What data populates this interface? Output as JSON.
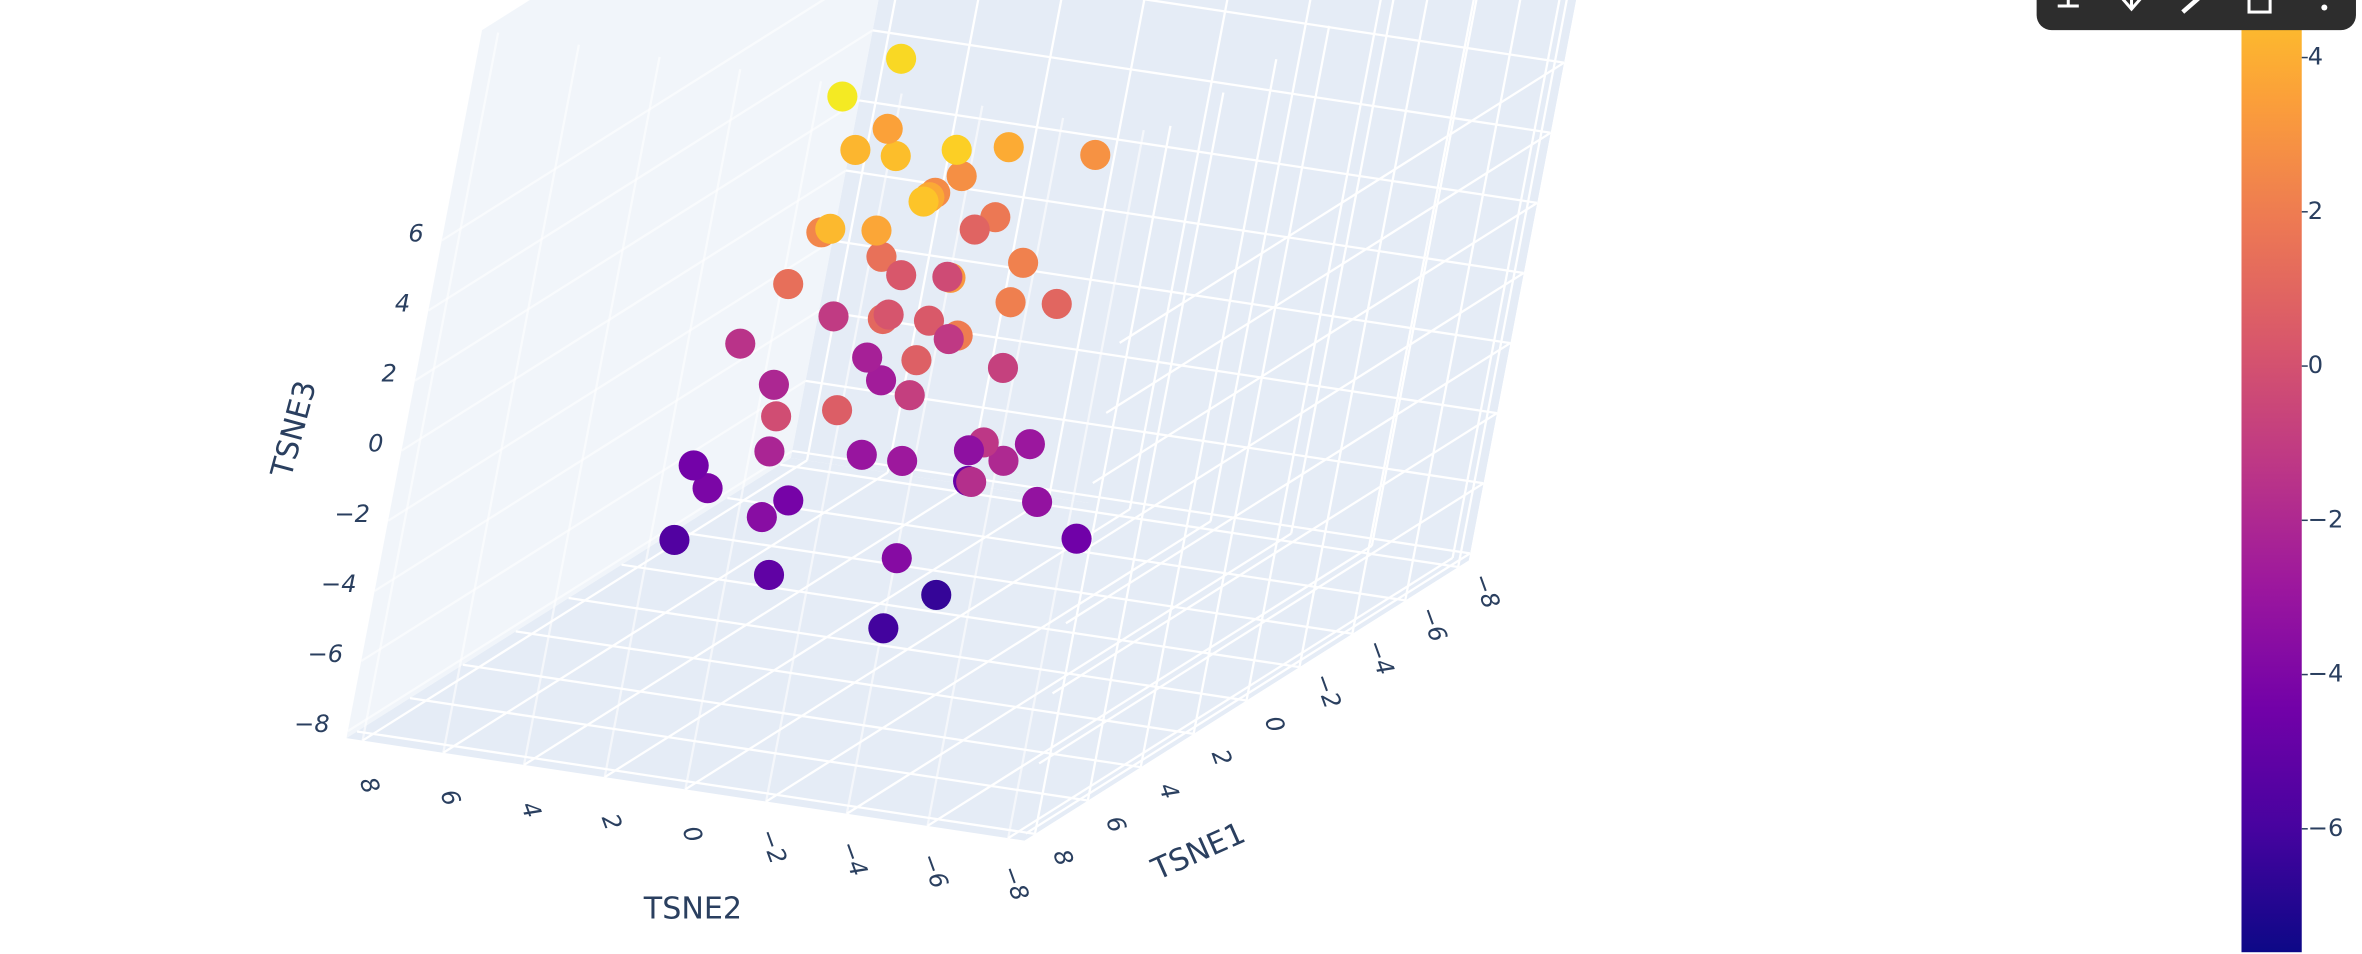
{
  "chart_data": {
    "type": "scatter3d",
    "xaxis_title": "TSNE1",
    "yaxis_title": "TSNE2",
    "zaxis_title": "TSNE3",
    "xlim": [
      -8.4,
      8.4
    ],
    "ylim": [
      -8.4,
      8.4
    ],
    "zlim": [
      -8.2,
      12
    ],
    "xticks": [
      {
        "value": -8,
        "label": "−8"
      },
      {
        "value": -6,
        "label": "−6"
      },
      {
        "value": -4,
        "label": "−4"
      },
      {
        "value": -2,
        "label": "−2"
      },
      0,
      2,
      4,
      6,
      8
    ],
    "yticks": [
      {
        "value": -8,
        "label": "−8"
      },
      {
        "value": -6,
        "label": "−6"
      },
      {
        "value": -4,
        "label": "−4"
      },
      {
        "value": -2,
        "label": "−2"
      },
      0,
      2,
      4,
      6,
      8
    ],
    "zticks": [
      {
        "value": -8,
        "label": "−8"
      },
      {
        "value": -6,
        "label": "−6"
      },
      {
        "value": -4,
        "label": "−4"
      },
      {
        "value": -2,
        "label": "−2"
      },
      0,
      2,
      4,
      6
    ],
    "colorscale": [
      "#0d0887",
      "#46039f",
      "#7201a8",
      "#9c179e",
      "#bd3786",
      "#d8576b",
      "#ed7953",
      "#fb9f3a",
      "#fdca26",
      "#f0f921"
    ],
    "clim": [
      -7.6,
      6.6
    ],
    "colorbar_ticks": [
      {
        "value": -6,
        "label": "−6"
      },
      {
        "value": -4,
        "label": "−4"
      },
      {
        "value": -2,
        "label": "−2"
      },
      0,
      2,
      4
    ],
    "grid": true,
    "series": [
      {
        "x": [
          1,
          -2,
          3,
          0,
          -1,
          2,
          4,
          -3,
          1,
          0,
          2,
          -1,
          3,
          -2,
          0,
          1,
          5,
          -4,
          2,
          -1,
          0,
          3,
          -3,
          1,
          2,
          -2,
          4,
          0,
          -1,
          1,
          3,
          -4,
          2,
          0,
          -2,
          1,
          5,
          -1,
          0,
          2,
          -3,
          1,
          3,
          -2,
          0,
          4,
          -1,
          2,
          1,
          -3,
          0,
          2,
          -2,
          3,
          1,
          0,
          -1,
          2,
          4,
          -2
        ],
        "y": [
          2,
          1,
          -1,
          4,
          3,
          0,
          2,
          5,
          -2,
          1,
          3,
          -3,
          1,
          2,
          -1,
          4,
          0,
          3,
          -2,
          5,
          2,
          -1,
          1,
          3,
          0,
          4,
          -2,
          1,
          6,
          -3,
          2,
          0,
          1,
          -1,
          3,
          5,
          1,
          2,
          -2,
          0,
          4,
          3,
          -1,
          1,
          2,
          -3,
          0,
          5,
          1,
          2,
          -2,
          3,
          4,
          0,
          -1,
          6,
          1,
          -2,
          2,
          3
        ],
        "z": [
          6,
          5,
          4,
          3,
          2,
          1,
          0,
          -1,
          -2,
          -3,
          -4,
          -5,
          5,
          4,
          3,
          2,
          1,
          0,
          -1,
          -2,
          -3,
          -4,
          -5,
          6,
          7,
          5,
          3,
          1,
          -1,
          -3,
          -5,
          4,
          2,
          0,
          -2,
          -4,
          6,
          4,
          2,
          0,
          -2,
          -4,
          -6,
          3,
          1,
          -1,
          -3,
          -5,
          5,
          2,
          -2,
          8,
          7,
          6,
          -6,
          -4,
          0,
          3,
          -1,
          1
        ],
        "color_values": [
          4.6,
          3.9,
          3.1,
          2.4,
          1.5,
          0.7,
          -0.2,
          -1.1,
          -2,
          -2.8,
          -3.6,
          -4.5,
          3.7,
          2.8,
          2.2,
          1.4,
          0.6,
          -0.3,
          -1.3,
          -2.1,
          -3,
          -3.7,
          -4.8,
          4.3,
          5.2,
          3.5,
          2.0,
          0.4,
          -1.5,
          -3.2,
          -5.1,
          2.9,
          1.1,
          -0.8,
          -2.6,
          -4.1,
          4.4,
          2.6,
          1.0,
          -0.9,
          -2.4,
          -4.3,
          -6.1,
          1.8,
          0.2,
          -1.7,
          -3.4,
          -5.6,
          3.8,
          0.9,
          -2.9,
          6.1,
          5.5,
          4.8,
          -6.5,
          -4.4,
          -1.2,
          2.1,
          -2.2,
          0.3
        ]
      }
    ]
  }
}
